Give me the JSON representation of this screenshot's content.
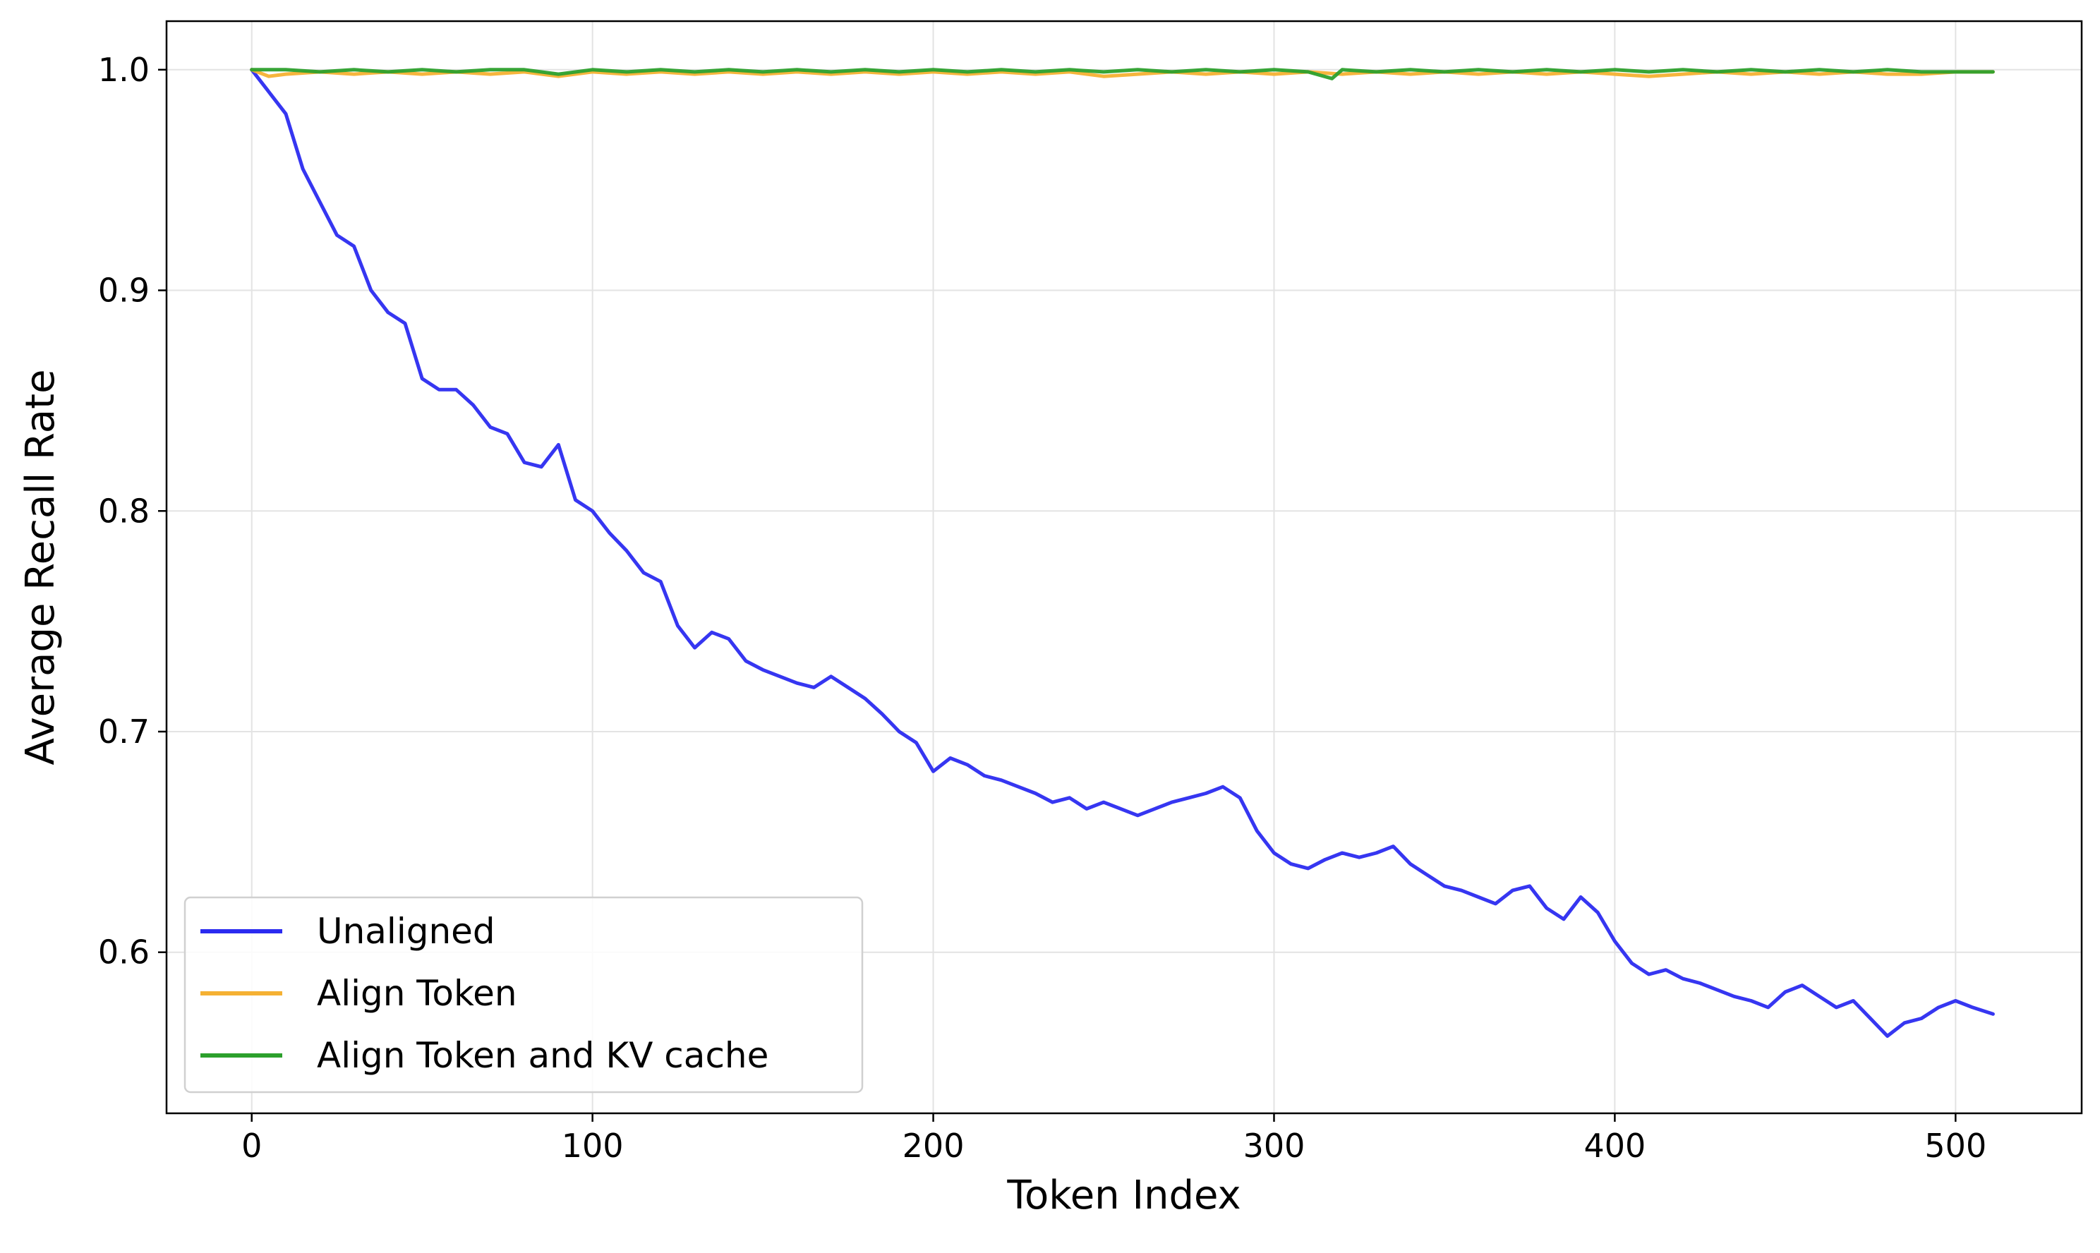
{
  "chart_data": {
    "type": "line",
    "title": "",
    "xlabel": "Token Index",
    "ylabel": "Average Recall Rate",
    "xlim": [
      -25,
      537
    ],
    "ylim": [
      0.527,
      1.022
    ],
    "xticks": [
      0,
      100,
      200,
      300,
      400,
      500
    ],
    "xtick_labels": [
      "0",
      "100",
      "200",
      "300",
      "400",
      "500"
    ],
    "yticks": [
      0.6,
      0.7,
      0.8,
      0.9,
      1.0
    ],
    "ytick_labels": [
      "0.6",
      "0.7",
      "0.8",
      "0.9",
      "1.0"
    ],
    "grid": true,
    "legend_position": "lower-left",
    "series": [
      {
        "name": "Unaligned",
        "color": "#2b2bf0",
        "x": [
          0,
          5,
          10,
          15,
          20,
          25,
          30,
          35,
          40,
          45,
          50,
          55,
          60,
          65,
          70,
          75,
          80,
          85,
          90,
          95,
          100,
          105,
          110,
          115,
          120,
          125,
          130,
          135,
          140,
          145,
          150,
          155,
          160,
          165,
          170,
          175,
          180,
          185,
          190,
          195,
          200,
          205,
          210,
          215,
          220,
          225,
          230,
          235,
          240,
          245,
          250,
          255,
          260,
          265,
          270,
          275,
          280,
          285,
          290,
          295,
          300,
          305,
          310,
          315,
          320,
          325,
          330,
          335,
          340,
          345,
          350,
          355,
          360,
          365,
          370,
          375,
          380,
          385,
          390,
          395,
          400,
          405,
          410,
          415,
          420,
          425,
          430,
          435,
          440,
          445,
          450,
          455,
          460,
          465,
          470,
          475,
          480,
          485,
          490,
          495,
          500,
          505,
          511
        ],
        "y": [
          1.0,
          0.99,
          0.98,
          0.955,
          0.94,
          0.925,
          0.92,
          0.9,
          0.89,
          0.885,
          0.86,
          0.855,
          0.855,
          0.848,
          0.838,
          0.835,
          0.822,
          0.82,
          0.83,
          0.805,
          0.8,
          0.79,
          0.782,
          0.772,
          0.768,
          0.748,
          0.738,
          0.745,
          0.742,
          0.732,
          0.728,
          0.725,
          0.722,
          0.72,
          0.725,
          0.72,
          0.715,
          0.708,
          0.7,
          0.695,
          0.682,
          0.688,
          0.685,
          0.68,
          0.678,
          0.675,
          0.672,
          0.668,
          0.67,
          0.665,
          0.668,
          0.665,
          0.662,
          0.665,
          0.668,
          0.67,
          0.672,
          0.675,
          0.67,
          0.655,
          0.645,
          0.64,
          0.638,
          0.642,
          0.645,
          0.643,
          0.645,
          0.648,
          0.64,
          0.635,
          0.63,
          0.628,
          0.625,
          0.622,
          0.628,
          0.63,
          0.62,
          0.615,
          0.625,
          0.618,
          0.605,
          0.595,
          0.59,
          0.592,
          0.588,
          0.586,
          0.583,
          0.58,
          0.578,
          0.575,
          0.582,
          0.585,
          0.58,
          0.575,
          0.578,
          0.57,
          0.562,
          0.568,
          0.57,
          0.575,
          0.578,
          0.575,
          0.572
        ]
      },
      {
        "name": "Align Token",
        "color": "#f5b133",
        "x": [
          0,
          5,
          10,
          20,
          30,
          40,
          50,
          60,
          70,
          80,
          90,
          100,
          110,
          120,
          130,
          140,
          150,
          160,
          170,
          180,
          190,
          200,
          210,
          220,
          230,
          240,
          250,
          260,
          270,
          280,
          290,
          300,
          310,
          320,
          330,
          340,
          350,
          360,
          370,
          380,
          390,
          400,
          410,
          420,
          430,
          440,
          450,
          460,
          470,
          480,
          490,
          500,
          511
        ],
        "y": [
          1.0,
          0.997,
          0.998,
          0.999,
          0.998,
          0.999,
          0.998,
          0.999,
          0.998,
          0.999,
          0.997,
          0.999,
          0.998,
          0.999,
          0.998,
          0.999,
          0.998,
          0.999,
          0.998,
          0.999,
          0.998,
          0.999,
          0.998,
          0.999,
          0.998,
          0.999,
          0.997,
          0.998,
          0.999,
          0.998,
          0.999,
          0.998,
          0.999,
          0.998,
          0.999,
          0.998,
          0.999,
          0.998,
          0.999,
          0.998,
          0.999,
          0.998,
          0.997,
          0.998,
          0.999,
          0.998,
          0.999,
          0.998,
          0.999,
          0.998,
          0.998,
          0.999,
          0.999
        ]
      },
      {
        "name": "Align Token and KV cache",
        "color": "#2ca02c",
        "x": [
          0,
          10,
          20,
          30,
          40,
          50,
          60,
          70,
          80,
          90,
          100,
          110,
          120,
          130,
          140,
          150,
          160,
          170,
          180,
          190,
          200,
          210,
          220,
          230,
          240,
          250,
          260,
          270,
          280,
          290,
          300,
          310,
          317,
          320,
          330,
          340,
          350,
          360,
          370,
          380,
          390,
          400,
          410,
          420,
          430,
          440,
          450,
          460,
          470,
          480,
          490,
          500,
          511
        ],
        "y": [
          1.0,
          1.0,
          0.999,
          1.0,
          0.999,
          1.0,
          0.999,
          1.0,
          1.0,
          0.998,
          1.0,
          0.999,
          1.0,
          0.999,
          1.0,
          0.999,
          1.0,
          0.999,
          1.0,
          0.999,
          1.0,
          0.999,
          1.0,
          0.999,
          1.0,
          0.999,
          1.0,
          0.999,
          1.0,
          0.999,
          1.0,
          0.999,
          0.996,
          1.0,
          0.999,
          1.0,
          0.999,
          1.0,
          0.999,
          1.0,
          0.999,
          1.0,
          0.999,
          1.0,
          0.999,
          1.0,
          0.999,
          1.0,
          0.999,
          1.0,
          0.999,
          0.999,
          0.999
        ]
      }
    ]
  }
}
